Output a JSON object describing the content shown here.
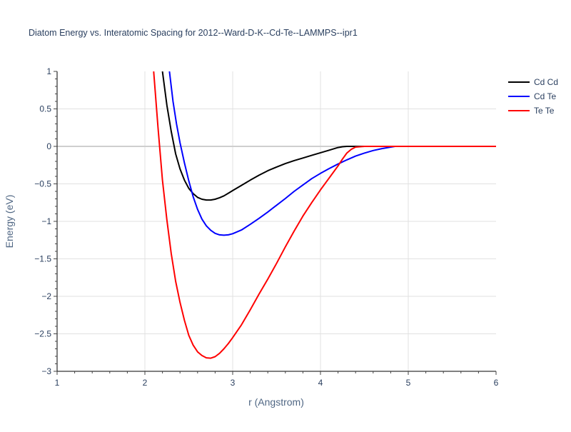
{
  "chart_data": {
    "type": "line",
    "title": "Diatom Energy vs. Interatomic Spacing for 2012--Ward-D-K--Cd-Te--LAMMPS--ipr1",
    "xlabel": "r (Angstrom)",
    "ylabel": "Energy (eV)",
    "xlim": [
      1,
      6
    ],
    "ylim": [
      -3,
      1
    ],
    "x_ticks": [
      "1",
      "2",
      "3",
      "4",
      "5",
      "6"
    ],
    "y_ticks": [
      "1",
      "0.5",
      "0",
      "−0.5",
      "−1",
      "−1.5",
      "−2",
      "−2.5",
      "−3"
    ],
    "grid": true,
    "legend_position": "top-right",
    "series": [
      {
        "name": "Cd Cd",
        "color": "#000000",
        "x": [
          2.2,
          2.25,
          2.3,
          2.35,
          2.4,
          2.45,
          2.5,
          2.55,
          2.6,
          2.65,
          2.7,
          2.75,
          2.8,
          2.85,
          2.9,
          2.95,
          3.0,
          3.1,
          3.2,
          3.3,
          3.4,
          3.5,
          3.6,
          3.7,
          3.8,
          3.9,
          4.0,
          4.1,
          4.2,
          4.25,
          4.3,
          4.4,
          4.5,
          4.75,
          5.0,
          5.5,
          6.0
        ],
        "y": [
          1.0,
          0.55,
          0.2,
          -0.1,
          -0.3,
          -0.45,
          -0.56,
          -0.63,
          -0.68,
          -0.705,
          -0.715,
          -0.715,
          -0.705,
          -0.685,
          -0.66,
          -0.625,
          -0.59,
          -0.52,
          -0.45,
          -0.385,
          -0.325,
          -0.275,
          -0.23,
          -0.19,
          -0.155,
          -0.12,
          -0.085,
          -0.05,
          -0.015,
          -0.005,
          0.0,
          0.0,
          0.0,
          0.0,
          0.0,
          0.0,
          0.0
        ]
      },
      {
        "name": "Cd Te",
        "color": "#0000ff",
        "x": [
          2.28,
          2.32,
          2.36,
          2.4,
          2.45,
          2.5,
          2.55,
          2.6,
          2.65,
          2.7,
          2.75,
          2.8,
          2.85,
          2.9,
          2.95,
          3.0,
          3.1,
          3.2,
          3.3,
          3.4,
          3.5,
          3.6,
          3.7,
          3.8,
          3.9,
          4.0,
          4.1,
          4.2,
          4.3,
          4.4,
          4.5,
          4.6,
          4.7,
          4.8,
          4.85,
          5.0,
          5.5,
          6.0
        ],
        "y": [
          1.0,
          0.6,
          0.3,
          0.05,
          -0.22,
          -0.46,
          -0.67,
          -0.84,
          -0.97,
          -1.06,
          -1.12,
          -1.16,
          -1.18,
          -1.185,
          -1.18,
          -1.165,
          -1.115,
          -1.04,
          -0.96,
          -0.875,
          -0.785,
          -0.695,
          -0.6,
          -0.515,
          -0.43,
          -0.36,
          -0.295,
          -0.235,
          -0.18,
          -0.13,
          -0.09,
          -0.055,
          -0.03,
          -0.01,
          0.0,
          0.0,
          0.0,
          0.0
        ]
      },
      {
        "name": "Te Te",
        "color": "#ff0000",
        "x": [
          2.1,
          2.15,
          2.2,
          2.25,
          2.3,
          2.35,
          2.4,
          2.45,
          2.5,
          2.55,
          2.6,
          2.65,
          2.7,
          2.75,
          2.8,
          2.85,
          2.9,
          2.95,
          3.0,
          3.1,
          3.2,
          3.3,
          3.4,
          3.5,
          3.6,
          3.7,
          3.8,
          3.9,
          4.0,
          4.1,
          4.2,
          4.25,
          4.3,
          4.35,
          4.4,
          4.5,
          5.0,
          5.5,
          6.0
        ],
        "y": [
          1.0,
          0.25,
          -0.45,
          -0.98,
          -1.43,
          -1.8,
          -2.08,
          -2.32,
          -2.52,
          -2.65,
          -2.74,
          -2.79,
          -2.82,
          -2.825,
          -2.805,
          -2.76,
          -2.7,
          -2.63,
          -2.55,
          -2.38,
          -2.18,
          -1.97,
          -1.77,
          -1.56,
          -1.34,
          -1.13,
          -0.93,
          -0.75,
          -0.58,
          -0.42,
          -0.26,
          -0.17,
          -0.09,
          -0.04,
          -0.01,
          0.0,
          0.0,
          0.0,
          0.0
        ]
      }
    ]
  }
}
